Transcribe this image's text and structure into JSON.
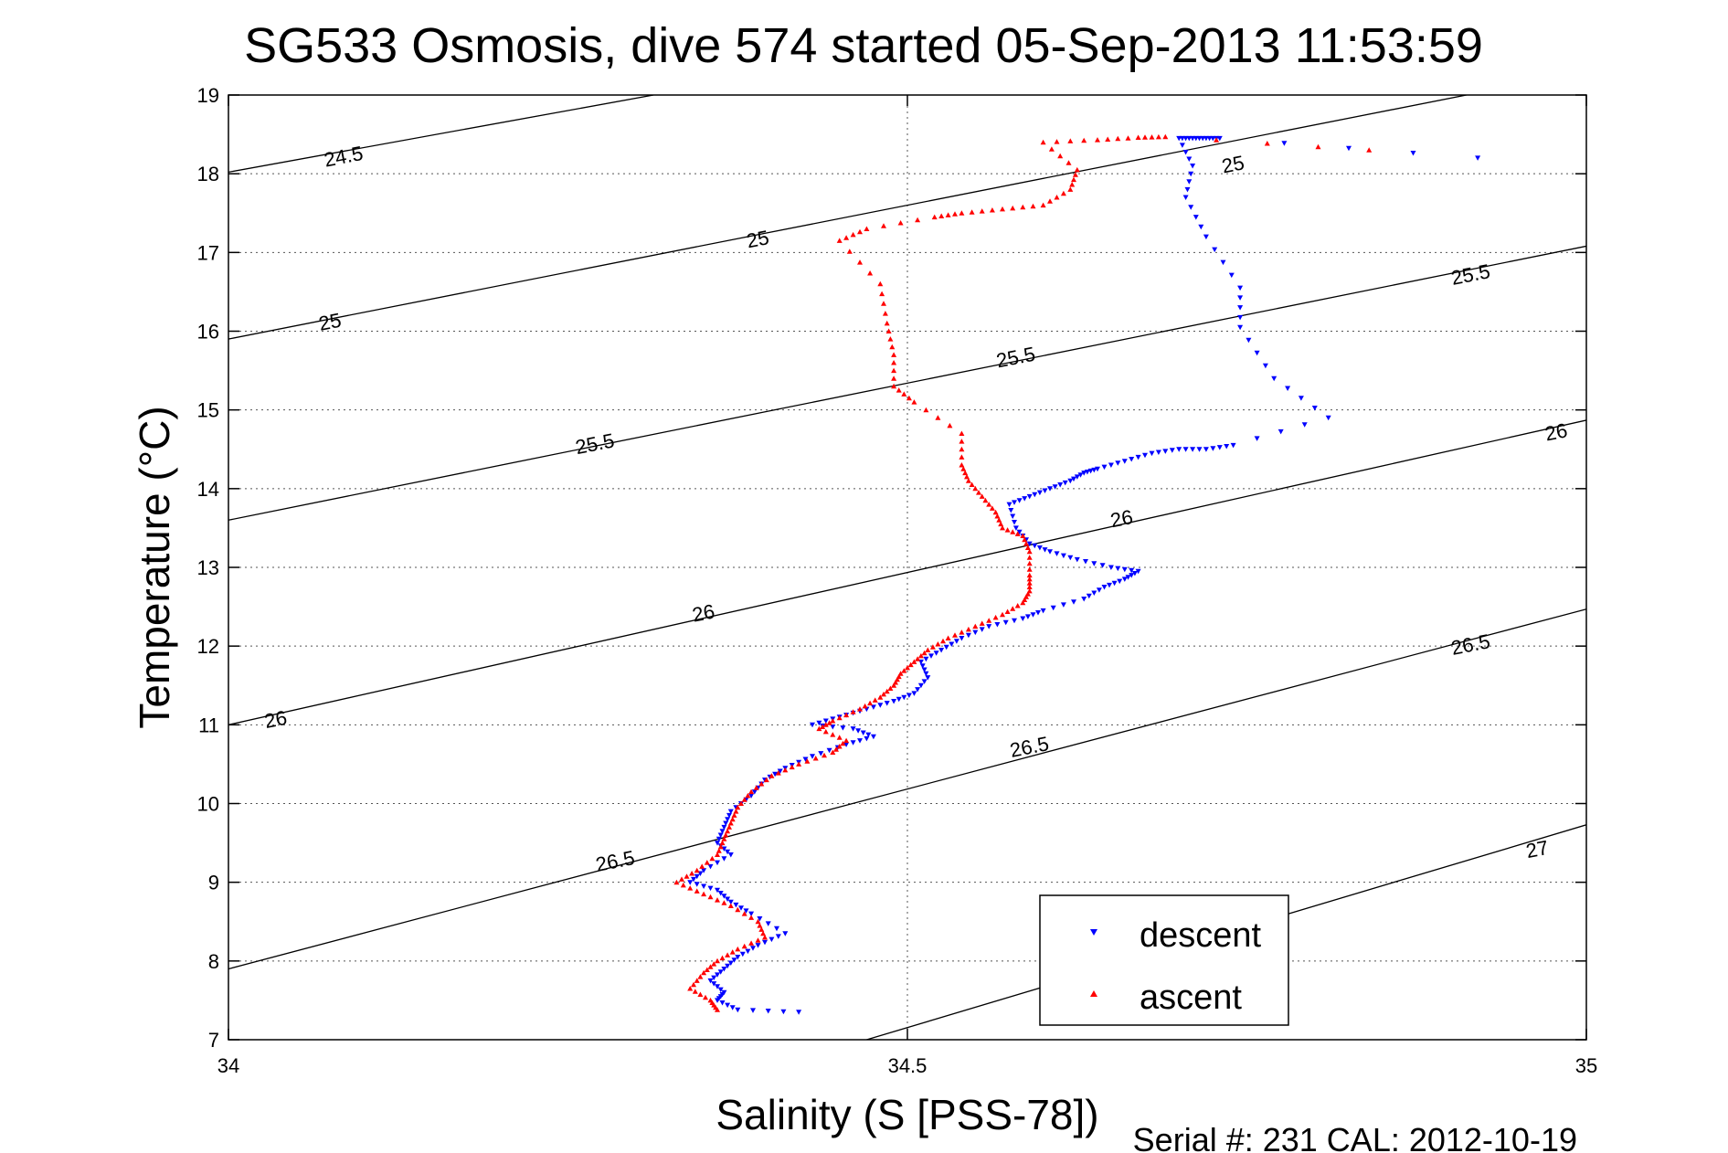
{
  "colors": {
    "descent": "#0000ff",
    "ascent": "#ff0000",
    "axis": "#000000",
    "grid": "#555555",
    "isopycnal": "#000000"
  },
  "chart_data": {
    "type": "scatter",
    "title": "SG533 Osmosis, dive 574 started 05-Sep-2013 11:53:59",
    "xlabel": "Salinity (S [PSS-78])",
    "ylabel": "Temperature (°C)",
    "xlim": [
      34,
      35
    ],
    "ylim": [
      7,
      19
    ],
    "xticks": [
      34,
      34.5,
      35
    ],
    "xtick_labels": [
      "34",
      "34.5",
      "35"
    ],
    "yticks": [
      7,
      8,
      9,
      10,
      11,
      12,
      13,
      14,
      15,
      16,
      17,
      18,
      19
    ],
    "ytick_labels": [
      "7",
      "8",
      "9",
      "10",
      "11",
      "12",
      "13",
      "14",
      "15",
      "16",
      "17",
      "18",
      "19"
    ],
    "grid": true,
    "legend_position": "bottom-right",
    "isopycnals": [
      {
        "label": "24.5",
        "points": [
          [
            34,
            18.02
          ],
          [
            34.313,
            19
          ]
        ]
      },
      {
        "label": "25",
        "points": [
          [
            34,
            15.9
          ],
          [
            35,
            19.3
          ]
        ]
      },
      {
        "label": "25.5",
        "points": [
          [
            34,
            13.6
          ],
          [
            35,
            17.08
          ]
        ]
      },
      {
        "label": "26",
        "points": [
          [
            34,
            11.0
          ],
          [
            35,
            14.87
          ]
        ]
      },
      {
        "label": "26.5",
        "points": [
          [
            34,
            7.9
          ],
          [
            35,
            12.47
          ]
        ]
      },
      {
        "label": "27",
        "points": [
          [
            34.47,
            7
          ],
          [
            35,
            9.73
          ]
        ]
      }
    ],
    "contour_labels": [
      {
        "text": "24.5",
        "x": 34.085,
        "y": 18.2
      },
      {
        "text": "25",
        "x": 34.74,
        "y": 18.1
      },
      {
        "text": "25",
        "x": 34.39,
        "y": 17.15
      },
      {
        "text": "25",
        "x": 34.075,
        "y": 16.1
      },
      {
        "text": "25.5",
        "x": 34.915,
        "y": 16.7
      },
      {
        "text": "25.5",
        "x": 34.58,
        "y": 15.65
      },
      {
        "text": "25.5",
        "x": 34.27,
        "y": 14.55
      },
      {
        "text": "26",
        "x": 34.978,
        "y": 14.7
      },
      {
        "text": "26",
        "x": 34.658,
        "y": 13.6
      },
      {
        "text": "26",
        "x": 34.35,
        "y": 12.4
      },
      {
        "text": "26",
        "x": 34.035,
        "y": 11.05
      },
      {
        "text": "26.5",
        "x": 34.915,
        "y": 12.0
      },
      {
        "text": "26.5",
        "x": 34.59,
        "y": 10.7
      },
      {
        "text": "26.5",
        "x": 34.285,
        "y": 9.25
      },
      {
        "text": "27",
        "x": 34.964,
        "y": 9.4
      }
    ],
    "series": [
      {
        "name": "descent",
        "marker": "triangle-down",
        "points": [
          [
            34.92,
            18.2
          ],
          [
            34.73,
            18.45
          ],
          [
            34.72,
            18.45
          ],
          [
            34.71,
            18.45
          ],
          [
            34.7,
            18.45
          ],
          [
            34.71,
            18.1
          ],
          [
            34.705,
            17.7
          ],
          [
            34.72,
            17.2
          ],
          [
            34.745,
            16.55
          ],
          [
            34.745,
            16.05
          ],
          [
            34.77,
            15.4
          ],
          [
            34.81,
            14.9
          ],
          [
            34.74,
            14.55
          ],
          [
            34.72,
            14.5
          ],
          [
            34.7,
            14.5
          ],
          [
            34.68,
            14.45
          ],
          [
            34.66,
            14.35
          ],
          [
            34.64,
            14.25
          ],
          [
            34.63,
            14.2
          ],
          [
            34.62,
            14.1
          ],
          [
            34.605,
            14.0
          ],
          [
            34.59,
            13.9
          ],
          [
            34.575,
            13.8
          ],
          [
            34.58,
            13.5
          ],
          [
            34.59,
            13.3
          ],
          [
            34.605,
            13.2
          ],
          [
            34.625,
            13.1
          ],
          [
            34.65,
            13.0
          ],
          [
            34.67,
            12.95
          ],
          [
            34.66,
            12.85
          ],
          [
            34.645,
            12.75
          ],
          [
            34.63,
            12.6
          ],
          [
            34.6,
            12.45
          ],
          [
            34.585,
            12.35
          ],
          [
            34.56,
            12.25
          ],
          [
            34.54,
            12.1
          ],
          [
            34.525,
            11.95
          ],
          [
            34.51,
            11.8
          ],
          [
            34.515,
            11.6
          ],
          [
            34.505,
            11.4
          ],
          [
            34.49,
            11.3
          ],
          [
            34.47,
            11.2
          ],
          [
            34.45,
            11.1
          ],
          [
            34.43,
            11.0
          ],
          [
            34.46,
            10.95
          ],
          [
            34.475,
            10.85
          ],
          [
            34.455,
            10.75
          ],
          [
            34.43,
            10.6
          ],
          [
            34.41,
            10.45
          ],
          [
            34.395,
            10.3
          ],
          [
            34.385,
            10.1
          ],
          [
            34.37,
            9.9
          ],
          [
            34.365,
            9.7
          ],
          [
            34.36,
            9.5
          ],
          [
            34.37,
            9.35
          ],
          [
            34.35,
            9.15
          ],
          [
            34.34,
            9.0
          ],
          [
            34.36,
            8.9
          ],
          [
            34.37,
            8.75
          ],
          [
            34.385,
            8.6
          ],
          [
            34.41,
            8.35
          ],
          [
            34.39,
            8.2
          ],
          [
            34.375,
            8.05
          ],
          [
            34.365,
            7.9
          ],
          [
            34.355,
            7.75
          ],
          [
            34.365,
            7.6
          ],
          [
            34.36,
            7.5
          ],
          [
            34.375,
            7.38
          ],
          [
            34.42,
            7.35
          ]
        ]
      },
      {
        "name": "ascent",
        "marker": "triangle-up",
        "points": [
          [
            34.84,
            18.3
          ],
          [
            34.69,
            18.47
          ],
          [
            34.67,
            18.46
          ],
          [
            34.64,
            18.43
          ],
          [
            34.6,
            18.4
          ],
          [
            34.625,
            18.05
          ],
          [
            34.62,
            17.8
          ],
          [
            34.6,
            17.6
          ],
          [
            34.57,
            17.55
          ],
          [
            34.54,
            17.5
          ],
          [
            34.52,
            17.45
          ],
          [
            34.47,
            17.3
          ],
          [
            34.45,
            17.15
          ],
          [
            34.48,
            16.6
          ],
          [
            34.485,
            16.1
          ],
          [
            34.49,
            15.7
          ],
          [
            34.49,
            15.3
          ],
          [
            34.505,
            15.1
          ],
          [
            34.54,
            14.7
          ],
          [
            34.54,
            14.3
          ],
          [
            34.545,
            14.1
          ],
          [
            34.555,
            13.9
          ],
          [
            34.565,
            13.7
          ],
          [
            34.57,
            13.5
          ],
          [
            34.585,
            13.4
          ],
          [
            34.59,
            13.2
          ],
          [
            34.59,
            12.9
          ],
          [
            34.59,
            12.7
          ],
          [
            34.585,
            12.55
          ],
          [
            34.57,
            12.4
          ],
          [
            34.55,
            12.25
          ],
          [
            34.53,
            12.1
          ],
          [
            34.515,
            11.95
          ],
          [
            34.505,
            11.8
          ],
          [
            34.495,
            11.65
          ],
          [
            34.49,
            11.5
          ],
          [
            34.48,
            11.35
          ],
          [
            34.465,
            11.2
          ],
          [
            34.445,
            11.05
          ],
          [
            34.435,
            10.95
          ],
          [
            34.455,
            10.8
          ],
          [
            34.445,
            10.65
          ],
          [
            34.42,
            10.5
          ],
          [
            34.4,
            10.35
          ],
          [
            34.385,
            10.15
          ],
          [
            34.375,
            9.95
          ],
          [
            34.37,
            9.75
          ],
          [
            34.365,
            9.55
          ],
          [
            34.36,
            9.35
          ],
          [
            34.345,
            9.15
          ],
          [
            34.33,
            9.0
          ],
          [
            34.35,
            8.85
          ],
          [
            34.37,
            8.7
          ],
          [
            34.39,
            8.5
          ],
          [
            34.395,
            8.3
          ],
          [
            34.375,
            8.15
          ],
          [
            34.36,
            8.0
          ],
          [
            34.35,
            7.85
          ],
          [
            34.34,
            7.65
          ],
          [
            34.355,
            7.5
          ],
          [
            34.36,
            7.38
          ]
        ]
      }
    ],
    "footer_text": "Serial #: 231  CAL: 2012-10-19"
  }
}
